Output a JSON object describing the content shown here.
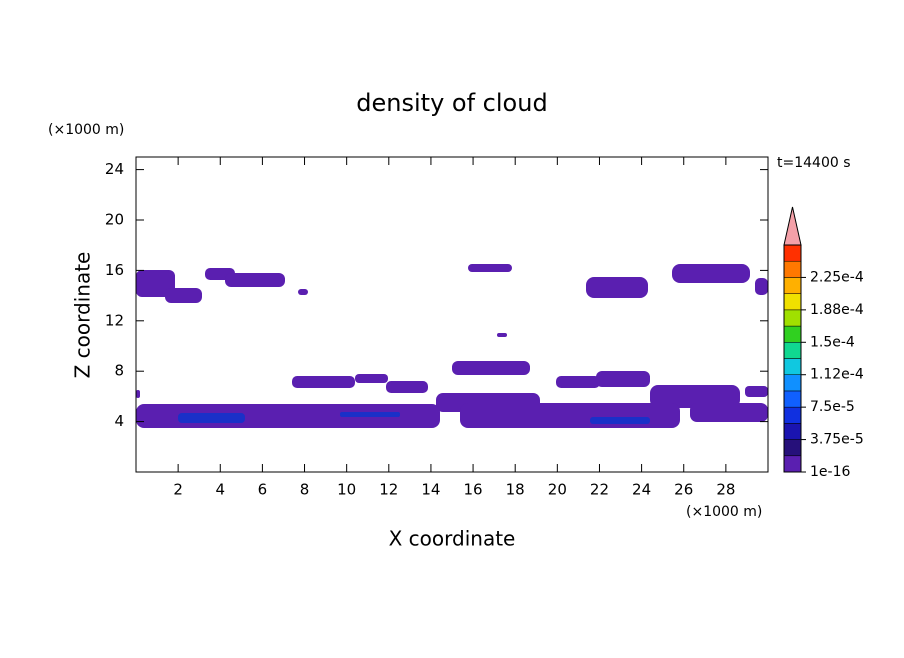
{
  "chart_data": {
    "type": "contour",
    "title": "density of cloud",
    "x_label": "X coordinate",
    "y_label": "Z coordinate",
    "x_unit": "(×1000 m)",
    "y_unit": "(×1000 m)",
    "time_label": "t=14400 s",
    "xlim": [
      0,
      30
    ],
    "ylim": [
      0,
      25
    ],
    "xticks": [
      2,
      4,
      6,
      8,
      10,
      12,
      14,
      16,
      18,
      20,
      22,
      24,
      26,
      28
    ],
    "yticks": [
      4,
      8,
      12,
      16,
      20,
      24
    ],
    "colorbar": {
      "ticks": [
        {
          "value": 1e-16,
          "label": "1e-16"
        },
        {
          "value": 3.75e-05,
          "label": "3.75e-5"
        },
        {
          "value": 7.5e-05,
          "label": "7.5e-5"
        },
        {
          "value": 0.000112,
          "label": "1.12e-4"
        },
        {
          "value": 0.00015,
          "label": "1.5e-4"
        },
        {
          "value": 0.000188,
          "label": "1.88e-4"
        },
        {
          "value": 0.000225,
          "label": "2.25e-4"
        }
      ],
      "colors": [
        "#5a1fb0",
        "#26107a",
        "#1a14b0",
        "#1030e0",
        "#1060ff",
        "#1090ff",
        "#10c8e0",
        "#10d890",
        "#30d020",
        "#a0e000",
        "#f0e000",
        "#ffb000",
        "#ff7800",
        "#ff3000"
      ],
      "extend_color": "#f4a0a8"
    }
  }
}
